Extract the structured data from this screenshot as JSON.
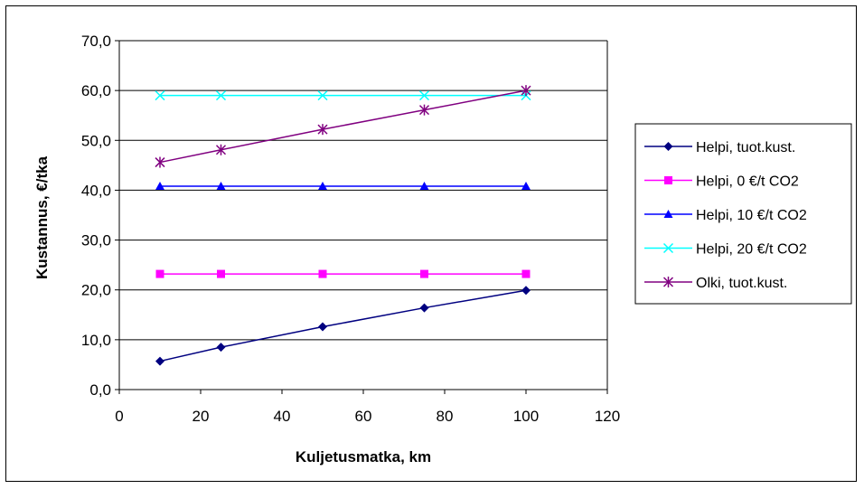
{
  "chart_data": {
    "type": "line",
    "title": "",
    "xlabel": "Kuljetusmatka, km",
    "ylabel": "Kustannus, €/tka",
    "xlim": [
      0,
      120
    ],
    "ylim": [
      0,
      70
    ],
    "x_ticks": [
      "0",
      "20",
      "40",
      "60",
      "80",
      "100",
      "120"
    ],
    "y_ticks": [
      "0,0",
      "10,0",
      "20,0",
      "30,0",
      "40,0",
      "50,0",
      "60,0",
      "70,0"
    ],
    "grid": "horizontal",
    "legend_position": "right",
    "x": [
      10,
      25,
      50,
      75,
      100
    ],
    "series": [
      {
        "name": "Helpi, tuot.kust.",
        "values": [
          5.7,
          8.5,
          12.6,
          16.4,
          19.9
        ],
        "color": "#000080",
        "marker": "diamond"
      },
      {
        "name": "Helpi, 0 €/t CO2",
        "values": [
          23.2,
          23.2,
          23.2,
          23.2,
          23.2
        ],
        "color": "#FF00FF",
        "marker": "square"
      },
      {
        "name": "Helpi, 10 €/t CO2",
        "values": [
          40.8,
          40.8,
          40.8,
          40.8,
          40.8
        ],
        "color": "#0000FF",
        "marker": "triangle"
      },
      {
        "name": "Helpi, 20 €/t CO2",
        "values": [
          59.0,
          59.0,
          59.0,
          59.0,
          59.0
        ],
        "color": "#00FFFF",
        "marker": "x"
      },
      {
        "name": "Olki, tuot.kust.",
        "values": [
          45.6,
          48.1,
          52.2,
          56.1,
          60.0
        ],
        "color": "#800080",
        "marker": "star"
      }
    ]
  }
}
